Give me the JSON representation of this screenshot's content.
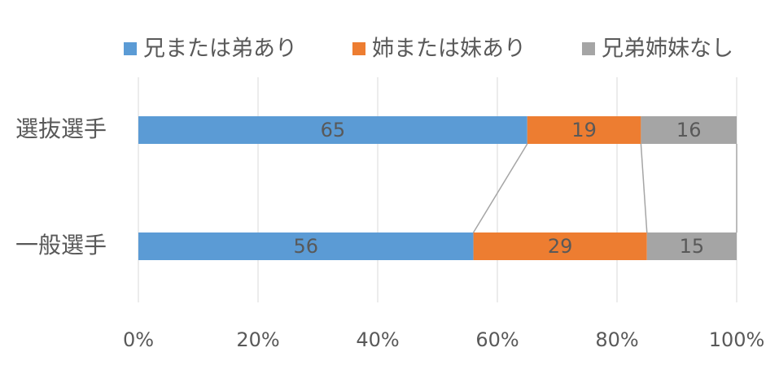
{
  "chart_data": {
    "type": "stacked-bar-horizontal",
    "categories": [
      "選抜選手",
      "一般選手"
    ],
    "series": [
      {
        "name": "兄または弟あり",
        "color": "#5b9bd5",
        "values": [
          65,
          56
        ]
      },
      {
        "name": "姉または妹あり",
        "color": "#ed7d31",
        "values": [
          19,
          29
        ]
      },
      {
        "name": "兄弟姉妹なし",
        "color": "#a5a5a5",
        "values": [
          16,
          15
        ]
      }
    ],
    "xlim": [
      0,
      100
    ],
    "xticks": [
      {
        "value": 0,
        "label": "0%"
      },
      {
        "value": 20,
        "label": "20%"
      },
      {
        "value": 40,
        "label": "40%"
      },
      {
        "value": 60,
        "label": "60%"
      },
      {
        "value": 80,
        "label": "80%"
      },
      {
        "value": 100,
        "label": "100%"
      }
    ],
    "grid": true,
    "legend": "top",
    "series_lines": true
  }
}
